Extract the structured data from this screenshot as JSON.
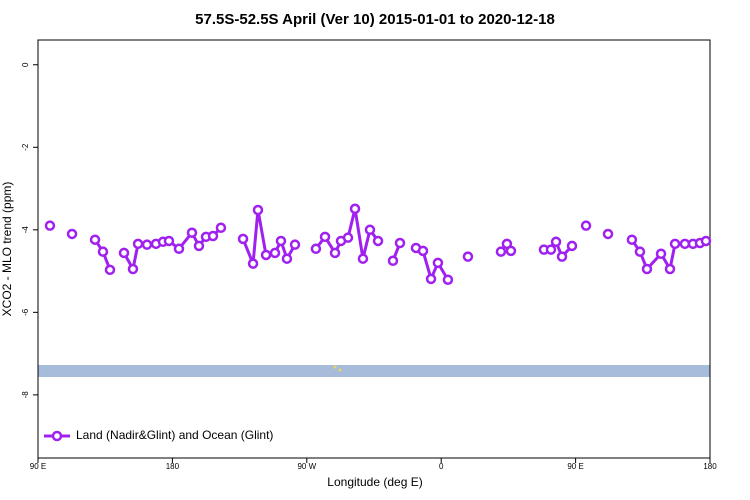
{
  "chart_data": {
    "type": "line",
    "title": "57.5S-52.5S April (Ver 10)   2015-01-01 to 2020-12-18",
    "x_label": "Longitude (deg E)",
    "y_label": "XCO2 - MLO trend (ppm)",
    "xlim": [
      90,
      540
    ],
    "ylim": [
      -9.53,
      0.6
    ],
    "xticks": [
      {
        "value": 90,
        "label": "90 E"
      },
      {
        "value": 180,
        "label": "180"
      },
      {
        "value": 270,
        "label": "90 W"
      },
      {
        "value": 360,
        "label": "0"
      },
      {
        "value": 450,
        "label": "90 E"
      },
      {
        "value": 540,
        "label": "180"
      }
    ],
    "yticks": [
      0,
      -2,
      -4,
      -6,
      -8
    ],
    "legend_position": "bottom-left",
    "series": [
      {
        "name": "Land (Nadir&Glint) and Ocean (Glint)",
        "color": "#a020f0",
        "x": [
          98.0,
          null,
          112.8,
          null,
          128.2,
          133.5,
          138.2,
          null,
          147.6,
          153.6,
          157.0,
          163.0,
          169.0,
          173.7,
          177.7,
          184.4,
          193.1,
          197.8,
          202.5,
          207.2,
          212.5,
          null,
          227.3,
          234.0,
          237.3,
          242.7,
          248.7,
          252.7,
          256.7,
          262.1,
          null,
          276.1,
          282.2,
          288.9,
          292.9,
          297.6,
          302.3,
          307.6,
          312.3,
          317.7,
          null,
          327.7,
          332.4,
          null,
          343.1,
          347.8,
          353.2,
          357.8,
          364.5,
          null,
          377.9,
          null,
          400.0,
          404.0,
          406.7,
          null,
          428.8,
          433.5,
          436.9,
          440.9,
          447.6,
          null,
          457.0,
          null,
          471.7,
          null,
          487.7,
          493.1,
          497.8,
          507.2,
          513.2,
          516.6,
          523.2,
          528.6,
          533.3,
          537.3
        ],
        "values": [
          -3.9,
          null,
          -4.1,
          null,
          -4.24,
          -4.53,
          -4.97,
          null,
          -4.56,
          -4.95,
          -4.34,
          -4.36,
          -4.34,
          -4.29,
          -4.27,
          -4.46,
          -4.07,
          -4.39,
          -4.17,
          -4.15,
          -3.95,
          null,
          -4.22,
          -4.82,
          -3.52,
          -4.61,
          -4.56,
          -4.27,
          -4.7,
          -4.36,
          null,
          -4.46,
          -4.17,
          -4.56,
          -4.27,
          -4.19,
          -3.49,
          -4.7,
          -4.0,
          -4.27,
          null,
          -4.75,
          -4.32,
          null,
          -4.44,
          -4.51,
          -5.19,
          -4.8,
          -5.21,
          null,
          -4.65,
          null,
          -4.53,
          -4.34,
          -4.51,
          null,
          -4.48,
          -4.48,
          -4.29,
          -4.65,
          -4.39,
          null,
          -3.9,
          null,
          -4.1,
          null,
          -4.24,
          -4.53,
          -4.95,
          -4.58,
          -4.95,
          -4.34,
          -4.34,
          -4.34,
          -4.32,
          -4.27
        ]
      }
    ]
  }
}
